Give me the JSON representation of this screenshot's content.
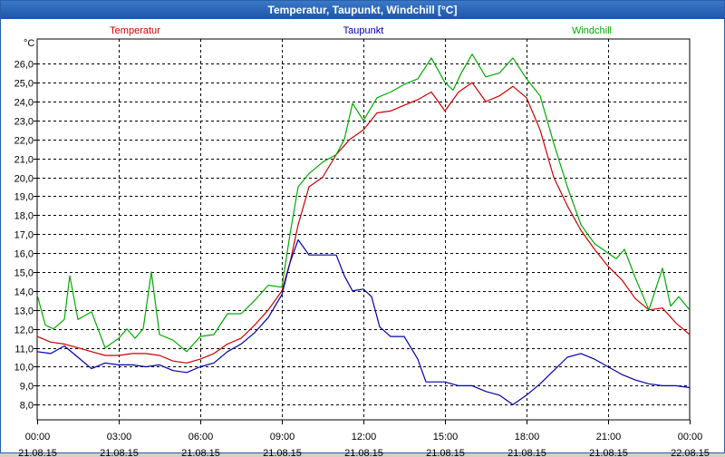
{
  "window": {
    "title": "Temperatur, Taupunkt, Windchill [°C]"
  },
  "chart_data": {
    "type": "line",
    "unit_label": "°C",
    "ylim": [
      7.2,
      27.3
    ],
    "yticks": [
      8.0,
      9.0,
      10.0,
      11.0,
      12.0,
      13.0,
      14.0,
      15.0,
      16.0,
      17.0,
      18.0,
      19.0,
      20.0,
      21.0,
      22.0,
      23.0,
      24.0,
      25.0,
      26.0
    ],
    "ytick_labels": [
      "8,0",
      "9,0",
      "10,0",
      "11,0",
      "12,0",
      "13,0",
      "14,0",
      "15,0",
      "16,0",
      "17,0",
      "18,0",
      "19,0",
      "20,0",
      "21,0",
      "22,0",
      "23,0",
      "24,0",
      "25,0",
      "26,0"
    ],
    "xlim": [
      0,
      24
    ],
    "xticks": [
      0,
      3,
      6,
      9,
      12,
      15,
      18,
      21,
      24
    ],
    "xtick_times": [
      "00:00",
      "03:00",
      "06:00",
      "09:00",
      "12:00",
      "15:00",
      "18:00",
      "21:00",
      "00:00"
    ],
    "xtick_dates": [
      "21.08.15",
      "21.08.15",
      "21.08.15",
      "21.08.15",
      "21.08.15",
      "21.08.15",
      "21.08.15",
      "21.08.15",
      "22.08.15"
    ],
    "grid": true,
    "legend_placement": "top",
    "series": [
      {
        "name": "Temperatur",
        "color": "#cc0000",
        "points": [
          [
            0,
            11.6
          ],
          [
            0.5,
            11.3
          ],
          [
            1,
            11.2
          ],
          [
            1.5,
            11.0
          ],
          [
            2,
            10.8
          ],
          [
            2.5,
            10.6
          ],
          [
            3,
            10.6
          ],
          [
            3.5,
            10.7
          ],
          [
            4,
            10.7
          ],
          [
            4.5,
            10.6
          ],
          [
            5,
            10.3
          ],
          [
            5.5,
            10.2
          ],
          [
            6,
            10.4
          ],
          [
            6.5,
            10.7
          ],
          [
            7,
            11.2
          ],
          [
            7.5,
            11.5
          ],
          [
            8,
            12.2
          ],
          [
            8.5,
            13.0
          ],
          [
            9,
            14.0
          ],
          [
            9.3,
            15.5
          ],
          [
            9.6,
            17.5
          ],
          [
            10,
            19.5
          ],
          [
            10.5,
            20.0
          ],
          [
            11,
            21.2
          ],
          [
            11.5,
            22.0
          ],
          [
            12,
            22.5
          ],
          [
            12.5,
            23.4
          ],
          [
            13,
            23.5
          ],
          [
            13.5,
            23.8
          ],
          [
            14,
            24.1
          ],
          [
            14.5,
            24.5
          ],
          [
            15,
            23.5
          ],
          [
            15.5,
            24.5
          ],
          [
            16,
            25.0
          ],
          [
            16.5,
            24.0
          ],
          [
            17,
            24.3
          ],
          [
            17.5,
            24.8
          ],
          [
            18,
            24.2
          ],
          [
            18.5,
            22.5
          ],
          [
            19,
            20.0
          ],
          [
            19.5,
            18.5
          ],
          [
            20,
            17.2
          ],
          [
            20.5,
            16.2
          ],
          [
            21,
            15.3
          ],
          [
            21.5,
            14.6
          ],
          [
            22,
            13.6
          ],
          [
            22.5,
            13.0
          ],
          [
            23,
            13.1
          ],
          [
            23.5,
            12.3
          ],
          [
            24,
            11.7
          ]
        ]
      },
      {
        "name": "Taupunkt",
        "color": "#0000aa",
        "points": [
          [
            0,
            10.8
          ],
          [
            0.5,
            10.7
          ],
          [
            1,
            11.1
          ],
          [
            1.5,
            10.5
          ],
          [
            2,
            9.9
          ],
          [
            2.5,
            10.2
          ],
          [
            3,
            10.1
          ],
          [
            3.5,
            10.1
          ],
          [
            4,
            10.0
          ],
          [
            4.5,
            10.1
          ],
          [
            5,
            9.8
          ],
          [
            5.5,
            9.7
          ],
          [
            6,
            10.0
          ],
          [
            6.5,
            10.2
          ],
          [
            7,
            10.8
          ],
          [
            7.5,
            11.2
          ],
          [
            8,
            11.8
          ],
          [
            8.5,
            12.6
          ],
          [
            9,
            13.8
          ],
          [
            9.3,
            15.5
          ],
          [
            9.6,
            16.7
          ],
          [
            10,
            15.9
          ],
          [
            10.5,
            15.9
          ],
          [
            11,
            15.9
          ],
          [
            11.3,
            14.8
          ],
          [
            11.6,
            14.0
          ],
          [
            12,
            14.1
          ],
          [
            12.3,
            13.7
          ],
          [
            12.6,
            12.1
          ],
          [
            13,
            11.6
          ],
          [
            13.5,
            11.6
          ],
          [
            14,
            10.4
          ],
          [
            14.3,
            9.2
          ],
          [
            14.6,
            9.2
          ],
          [
            15,
            9.2
          ],
          [
            15.5,
            9.0
          ],
          [
            16,
            9.0
          ],
          [
            16.5,
            8.7
          ],
          [
            17,
            8.5
          ],
          [
            17.5,
            8.0
          ],
          [
            18,
            8.5
          ],
          [
            18.5,
            9.1
          ],
          [
            19,
            9.8
          ],
          [
            19.5,
            10.5
          ],
          [
            20,
            10.7
          ],
          [
            20.5,
            10.4
          ],
          [
            21,
            10.0
          ],
          [
            21.5,
            9.6
          ],
          [
            22,
            9.3
          ],
          [
            22.5,
            9.1
          ],
          [
            23,
            9.0
          ],
          [
            23.5,
            9.0
          ],
          [
            24,
            8.9
          ]
        ]
      },
      {
        "name": "Windchill",
        "color": "#00aa00",
        "points": [
          [
            0,
            13.8
          ],
          [
            0.3,
            12.2
          ],
          [
            0.6,
            12.0
          ],
          [
            1,
            12.5
          ],
          [
            1.2,
            14.8
          ],
          [
            1.5,
            12.5
          ],
          [
            2,
            12.9
          ],
          [
            2.5,
            11.0
          ],
          [
            3,
            11.5
          ],
          [
            3.3,
            12.0
          ],
          [
            3.6,
            11.5
          ],
          [
            3.9,
            12.0
          ],
          [
            4.2,
            15.0
          ],
          [
            4.5,
            11.7
          ],
          [
            5,
            11.4
          ],
          [
            5.5,
            10.8
          ],
          [
            6,
            11.6
          ],
          [
            6.5,
            11.7
          ],
          [
            7,
            12.8
          ],
          [
            7.5,
            12.8
          ],
          [
            8,
            13.5
          ],
          [
            8.5,
            14.3
          ],
          [
            9,
            14.2
          ],
          [
            9.3,
            17.0
          ],
          [
            9.6,
            19.5
          ],
          [
            10,
            20.2
          ],
          [
            10.5,
            20.8
          ],
          [
            11,
            21.2
          ],
          [
            11.3,
            22.0
          ],
          [
            11.6,
            23.9
          ],
          [
            12,
            23.0
          ],
          [
            12.5,
            24.2
          ],
          [
            13,
            24.5
          ],
          [
            13.5,
            24.9
          ],
          [
            14,
            25.2
          ],
          [
            14.5,
            26.3
          ],
          [
            15,
            25.0
          ],
          [
            15.3,
            24.6
          ],
          [
            15.6,
            25.5
          ],
          [
            16,
            26.5
          ],
          [
            16.5,
            25.3
          ],
          [
            17,
            25.5
          ],
          [
            17.5,
            26.3
          ],
          [
            18,
            25.2
          ],
          [
            18.5,
            24.3
          ],
          [
            19,
            21.8
          ],
          [
            19.5,
            19.5
          ],
          [
            20,
            17.5
          ],
          [
            20.5,
            16.5
          ],
          [
            21,
            16.0
          ],
          [
            21.3,
            15.7
          ],
          [
            21.6,
            16.2
          ],
          [
            22,
            14.7
          ],
          [
            22.5,
            13.0
          ],
          [
            23,
            15.2
          ],
          [
            23.3,
            13.2
          ],
          [
            23.6,
            13.7
          ],
          [
            24,
            13.0
          ]
        ]
      }
    ]
  }
}
